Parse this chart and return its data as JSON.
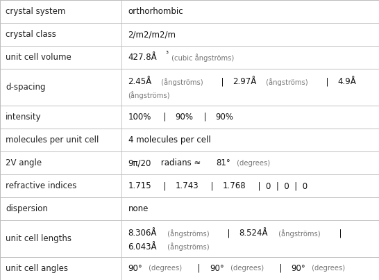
{
  "rows": [
    {
      "label": "crystal system",
      "value_parts": [
        {
          "text": "orthorhombic",
          "bold": false,
          "size": "normal"
        }
      ],
      "multiline": false
    },
    {
      "label": "crystal class",
      "value_parts": [
        {
          "text": "2/m2/m2/m",
          "bold": false,
          "size": "normal"
        }
      ],
      "multiline": false
    },
    {
      "label": "unit cell volume",
      "value_parts": [
        {
          "text": "427.8Å",
          "bold": false,
          "size": "normal"
        },
        {
          "text": "³",
          "bold": false,
          "size": "super"
        },
        {
          "text": " (cubic ångströms)",
          "bold": false,
          "size": "small"
        }
      ],
      "multiline": false
    },
    {
      "label": "d-spacing",
      "lines": [
        [
          {
            "text": "2.45Å",
            "bold": false,
            "size": "normal"
          },
          {
            "text": " (ångströms)",
            "bold": false,
            "size": "small"
          },
          {
            "text": "  |  ",
            "bold": false,
            "size": "normal"
          },
          {
            "text": "2.97Å",
            "bold": false,
            "size": "normal"
          },
          {
            "text": " (ångströms)",
            "bold": false,
            "size": "small"
          },
          {
            "text": "  |  ",
            "bold": false,
            "size": "normal"
          },
          {
            "text": "4.9Å",
            "bold": false,
            "size": "normal"
          }
        ],
        [
          {
            "text": "(ångströms)",
            "bold": false,
            "size": "small"
          }
        ]
      ],
      "multiline": true
    },
    {
      "label": "intensity",
      "value_parts": [
        {
          "text": "100%",
          "bold": false,
          "size": "normal"
        },
        {
          "text": "  |  ",
          "bold": false,
          "size": "normal"
        },
        {
          "text": "90%",
          "bold": false,
          "size": "normal"
        },
        {
          "text": "  |  ",
          "bold": false,
          "size": "normal"
        },
        {
          "text": "90%",
          "bold": false,
          "size": "normal"
        }
      ],
      "multiline": false
    },
    {
      "label": "molecules per unit cell",
      "value_parts": [
        {
          "text": "4 molecules per cell",
          "bold": false,
          "size": "normal"
        }
      ],
      "multiline": false
    },
    {
      "label": "2V angle",
      "value_parts": [
        {
          "text": "9π/20",
          "bold": false,
          "size": "normal"
        },
        {
          "text": " radians ≈ ",
          "bold": false,
          "size": "normal"
        },
        {
          "text": "81°",
          "bold": false,
          "size": "normal"
        },
        {
          "text": " (degrees)",
          "bold": false,
          "size": "small"
        }
      ],
      "multiline": false
    },
    {
      "label": "refractive indices",
      "value_parts": [
        {
          "text": "1.715",
          "bold": false,
          "size": "normal"
        },
        {
          "text": "  |  ",
          "bold": false,
          "size": "normal"
        },
        {
          "text": "1.743",
          "bold": false,
          "size": "normal"
        },
        {
          "text": "  |  ",
          "bold": false,
          "size": "normal"
        },
        {
          "text": "1.768",
          "bold": false,
          "size": "normal"
        },
        {
          "text": "  |  0  |  0  |  0",
          "bold": false,
          "size": "normal"
        }
      ],
      "multiline": false
    },
    {
      "label": "dispersion",
      "value_parts": [
        {
          "text": "none",
          "bold": false,
          "size": "normal"
        }
      ],
      "multiline": false
    },
    {
      "label": "unit cell lengths",
      "lines": [
        [
          {
            "text": "8.306Å",
            "bold": false,
            "size": "normal"
          },
          {
            "text": " (ångströms)",
            "bold": false,
            "size": "small"
          },
          {
            "text": "  |  ",
            "bold": false,
            "size": "normal"
          },
          {
            "text": "8.524Å",
            "bold": false,
            "size": "normal"
          },
          {
            "text": " (ångströms)",
            "bold": false,
            "size": "small"
          },
          {
            "text": "  |",
            "bold": false,
            "size": "normal"
          }
        ],
        [
          {
            "text": "6.043Å",
            "bold": false,
            "size": "normal"
          },
          {
            "text": " (ångströms)",
            "bold": false,
            "size": "small"
          }
        ]
      ],
      "multiline": true
    },
    {
      "label": "unit cell angles",
      "value_parts": [
        {
          "text": "90°",
          "bold": false,
          "size": "normal"
        },
        {
          "text": " (degrees)",
          "bold": false,
          "size": "small"
        },
        {
          "text": "  |  ",
          "bold": false,
          "size": "normal"
        },
        {
          "text": "90°",
          "bold": false,
          "size": "normal"
        },
        {
          "text": " (degrees)",
          "bold": false,
          "size": "small"
        },
        {
          "text": "  |  ",
          "bold": false,
          "size": "normal"
        },
        {
          "text": "90°",
          "bold": false,
          "size": "normal"
        },
        {
          "text": " (degrees)",
          "bold": false,
          "size": "small"
        }
      ],
      "multiline": false
    }
  ],
  "col_split": 0.32,
  "bg_color": "#ffffff",
  "border_color": "#bbbbbb",
  "label_color": "#222222",
  "value_normal_color": "#111111",
  "value_small_color": "#777777",
  "font_size": 8.5,
  "small_font_size": 7.2,
  "row_heights": [
    0.72,
    0.72,
    0.72,
    1.15,
    0.72,
    0.72,
    0.72,
    0.72,
    0.72,
    1.15,
    0.72
  ]
}
